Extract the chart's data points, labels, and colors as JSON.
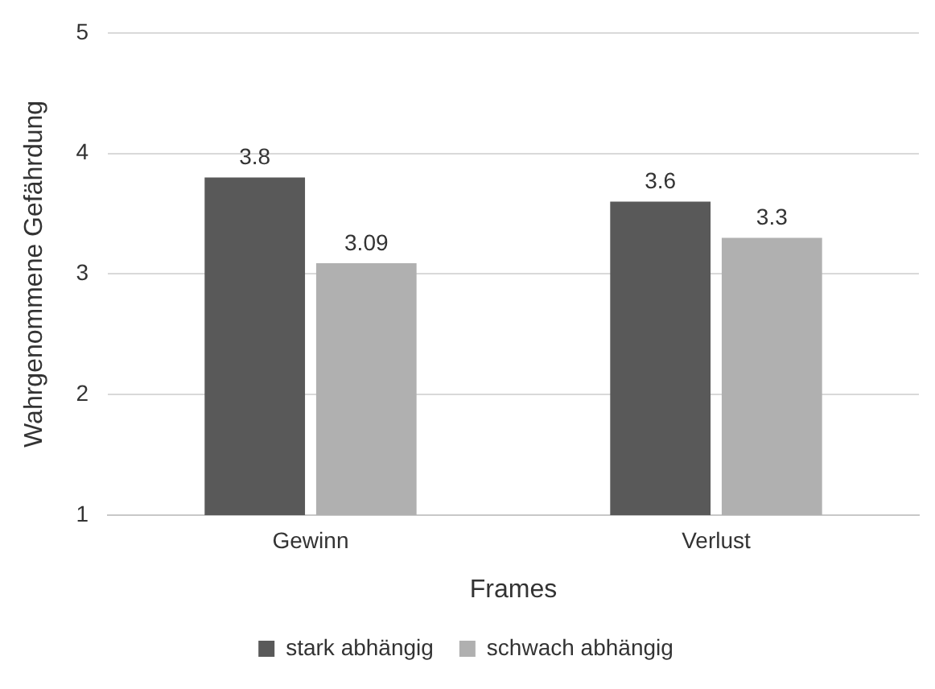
{
  "chart_data": {
    "type": "bar",
    "xlabel": "Frames",
    "ylabel": "Wahrgenommene Gefährdung",
    "categories": [
      "Gewinn",
      "Verlust"
    ],
    "series": [
      {
        "name": "stark abhängig",
        "color": "#595959",
        "values": [
          3.8,
          3.6
        ]
      },
      {
        "name": "schwach abhängig",
        "color": "#b0b0b0",
        "values": [
          3.09,
          3.3
        ]
      }
    ],
    "ylim": [
      1,
      5
    ],
    "yticks": [
      1,
      2,
      3,
      4,
      5
    ],
    "grid": "y",
    "legend": "bottom",
    "data_labels": true
  }
}
